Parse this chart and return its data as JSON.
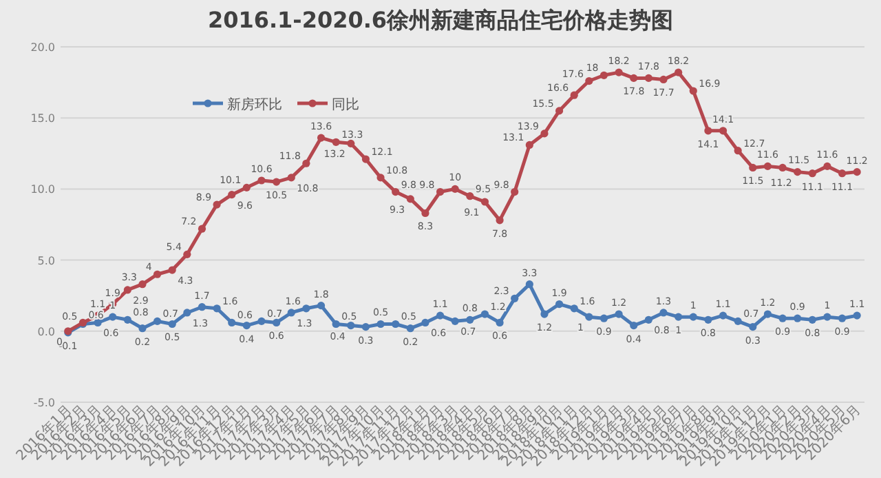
{
  "chart_data": {
    "type": "line",
    "title": "2016.1-2020.6徐州新建商品住宅价格走势图",
    "categories": [
      "2016年1月",
      "2016年2月",
      "2016年3月",
      "2016年4月",
      "2016年5月",
      "2016年6月",
      "2016年7月",
      "2016年8月",
      "2016年9月",
      "2016年10月",
      "2016年11月",
      "2016年12月",
      "2017年1月",
      "2017年2月",
      "2017年3月",
      "2017年4月",
      "2017年5月",
      "2017年6月",
      "2017年7月",
      "2017年8月",
      "2017年9月",
      "2017年10月",
      "2017年11月",
      "2017年12月",
      "2018年1月",
      "2018年2月",
      "2018年3月",
      "2018年4月",
      "2018年5月",
      "2018年6月",
      "2018年7月",
      "2018年8月",
      "2018年9月",
      "2018年10月",
      "2018年11月",
      "2018年12月",
      "2019年1月",
      "2019年2月",
      "2019年3月",
      "2019年4月",
      "2019年5月",
      "2019年6月",
      "2019年7月",
      "2019年8月",
      "2019年9月",
      "2019年10月",
      "2019年11月",
      "2019年12月",
      "2020年1月",
      "2020年2月",
      "2020年3月",
      "2020年4月",
      "2020年5月",
      "2020年6月"
    ],
    "series": [
      {
        "name": "新房环比",
        "color": "#4a7ab5",
        "values": [
          -0.1,
          0.5,
          0.6,
          1.0,
          0.8,
          0.2,
          0.7,
          0.5,
          1.3,
          1.7,
          1.6,
          0.6,
          0.4,
          0.7,
          0.6,
          1.3,
          1.6,
          1.8,
          0.5,
          0.4,
          0.3,
          0.5,
          0.5,
          0.2,
          0.6,
          1.1,
          0.7,
          0.8,
          1.2,
          0.6,
          2.3,
          3.3,
          1.2,
          1.9,
          1.6,
          1.0,
          0.9,
          1.2,
          0.4,
          0.8,
          1.3,
          1.0,
          1.0,
          0.8,
          1.1,
          0.7,
          0.3,
          1.2,
          0.9,
          0.9,
          0.8,
          1.0,
          0.9,
          1.1
        ]
      },
      {
        "name": "同比",
        "color": "#b5484f",
        "values": [
          0.0,
          0.6,
          1.1,
          1.9,
          2.9,
          3.3,
          4.0,
          4.3,
          5.4,
          7.2,
          8.9,
          9.6,
          10.1,
          10.6,
          10.5,
          10.8,
          11.8,
          13.6,
          13.3,
          13.2,
          12.1,
          10.8,
          9.8,
          9.3,
          8.3,
          9.8,
          10.0,
          9.5,
          9.1,
          7.8,
          9.8,
          13.1,
          13.9,
          15.5,
          16.6,
          17.6,
          18.0,
          18.2,
          17.8,
          17.8,
          17.7,
          18.2,
          16.9,
          14.1,
          14.1,
          12.7,
          11.5,
          11.6,
          11.5,
          11.2,
          11.1,
          11.6,
          11.1,
          11.2
        ]
      }
    ],
    "ylim": [
      -5,
      20
    ],
    "yticks": [
      {
        "value": -5,
        "label": "-5.0"
      },
      {
        "value": 0,
        "label": "0.0"
      },
      {
        "value": 5,
        "label": "5.0"
      },
      {
        "value": 10,
        "label": "10.0"
      },
      {
        "value": 15,
        "label": "15.0"
      },
      {
        "value": 20,
        "label": "20.0"
      }
    ],
    "grid": "y",
    "legend": "top left",
    "marker": "circle",
    "line_style": "solid",
    "data_labels": true
  }
}
